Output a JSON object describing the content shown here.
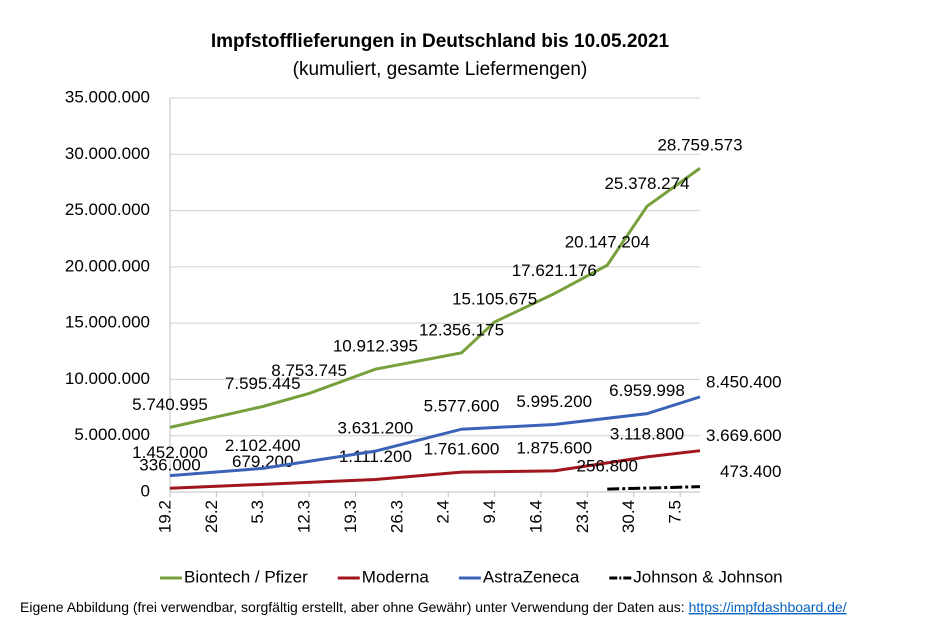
{
  "chart_data": {
    "type": "line",
    "title": "Impfstofflieferungen in Deutschland bis 10.05.2021",
    "subtitle": "(kumuliert, gesamte Liefermengen)",
    "source": "Eigene Abbildung (frei verwendbar, sorgfältig erstellt, aber ohne Gewähr) unter Verwendung der Daten aus:",
    "source_link": "https://impfdashboard.de/",
    "xlim": [
      0,
      80
    ],
    "xticks": [
      {
        "value": 0,
        "label": "19.2"
      },
      {
        "value": 7,
        "label": "26.2"
      },
      {
        "value": 14,
        "label": "5.3"
      },
      {
        "value": 21,
        "label": "12.3"
      },
      {
        "value": 28,
        "label": "19.3"
      },
      {
        "value": 35,
        "label": "26.3"
      },
      {
        "value": 42,
        "label": "2.4"
      },
      {
        "value": 49,
        "label": "9.4"
      },
      {
        "value": 56,
        "label": "16.4"
      },
      {
        "value": 63,
        "label": "23.4"
      },
      {
        "value": 70,
        "label": "30.4"
      },
      {
        "value": 77,
        "label": "7.5"
      }
    ],
    "ylim": [
      0,
      35000000
    ],
    "yticks": [
      {
        "value": 0,
        "label": "0"
      },
      {
        "value": 5000000,
        "label": "5.000.000"
      },
      {
        "value": 10000000,
        "label": "10.000.000"
      },
      {
        "value": 15000000,
        "label": "15.000.000"
      },
      {
        "value": 20000000,
        "label": "20.000.000"
      },
      {
        "value": 25000000,
        "label": "25.000.000"
      },
      {
        "value": 30000000,
        "label": "30.000.000"
      },
      {
        "value": 35000000,
        "label": "35.000.000"
      }
    ],
    "grid": true,
    "legend": "bottom",
    "series": [
      {
        "name": "Biontech / Pfizer",
        "color": "#77a03c",
        "x": [
          0,
          14,
          21,
          31,
          44,
          49,
          58,
          66,
          72,
          80
        ],
        "values": [
          5740995,
          7595445,
          8753745,
          10912395,
          12356175,
          15105675,
          17621176,
          20147204,
          25378274,
          28759573
        ],
        "value_labels": [
          "5.740.995",
          "7.595.445",
          "8.753.745",
          "10.912.395",
          "12.356.175",
          "15.105.675",
          "17.621.176",
          "20.147.204",
          "25.378.274",
          "28.759.573"
        ]
      },
      {
        "name": "Moderna",
        "color": "#a0161c",
        "x": [
          0,
          14,
          31,
          44,
          58,
          72,
          80
        ],
        "values": [
          336000,
          679200,
          1111200,
          1761600,
          1875600,
          3118800,
          3669600
        ],
        "value_labels": [
          "336.000",
          "679.200",
          "1.111.200",
          "1.761.600",
          "1.875.600",
          "3.118.800",
          "3.669.600"
        ]
      },
      {
        "name": "AstraZeneca",
        "color": "#3a63b8",
        "x": [
          0,
          14,
          31,
          44,
          58,
          72,
          80
        ],
        "values": [
          1452000,
          2102400,
          3631200,
          5577600,
          5995200,
          6959998,
          8450400
        ],
        "value_labels": [
          "1.452.000",
          "2.102.400",
          "3.631.200",
          "5.577.600",
          "5.995.200",
          "6.959.998",
          "8.450.400"
        ]
      },
      {
        "name": "Johnson & Johnson",
        "color": "#000000",
        "dashed": true,
        "x": [
          66,
          80
        ],
        "values": [
          256800,
          473400
        ],
        "value_labels": [
          "256.800",
          "473.400"
        ]
      }
    ]
  }
}
